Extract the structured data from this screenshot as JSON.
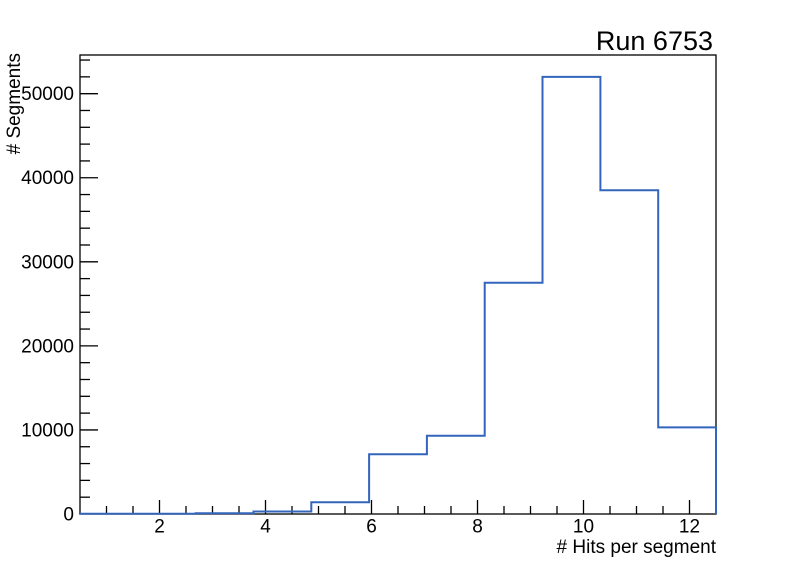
{
  "page": {
    "background": "#ffffff"
  },
  "chart_data": {
    "type": "histogram",
    "style": "step-line",
    "title": "Run 6753",
    "xlabel": "# Hits per segment",
    "ylabel": "# Segments",
    "xlim": [
      0.5,
      12.5
    ],
    "ylim": [
      0,
      54600
    ],
    "n_bins": 11,
    "bin_edges": [
      0.5,
      1.5909,
      2.6818,
      3.7727,
      4.8636,
      5.9545,
      7.0455,
      8.1364,
      9.2273,
      10.3182,
      11.4091,
      12.5
    ],
    "values": [
      20,
      40,
      80,
      300,
      1400,
      7100,
      9300,
      27500,
      52000,
      38500,
      10300
    ],
    "x_major_ticks": [
      2,
      4,
      6,
      8,
      10,
      12
    ],
    "x_tick_labels": [
      "2",
      "4",
      "6",
      "8",
      "10",
      "12"
    ],
    "x_minor_step": 0.5,
    "y_major_ticks": [
      0,
      10000,
      20000,
      30000,
      40000,
      50000
    ],
    "y_tick_labels": [
      "0",
      "10000",
      "20000",
      "30000",
      "40000",
      "50000"
    ],
    "y_minor_step": 2000,
    "grid": false,
    "legend": null,
    "line_color": "#3465bc",
    "axis_color": "#000000",
    "text_color": "#000000"
  }
}
